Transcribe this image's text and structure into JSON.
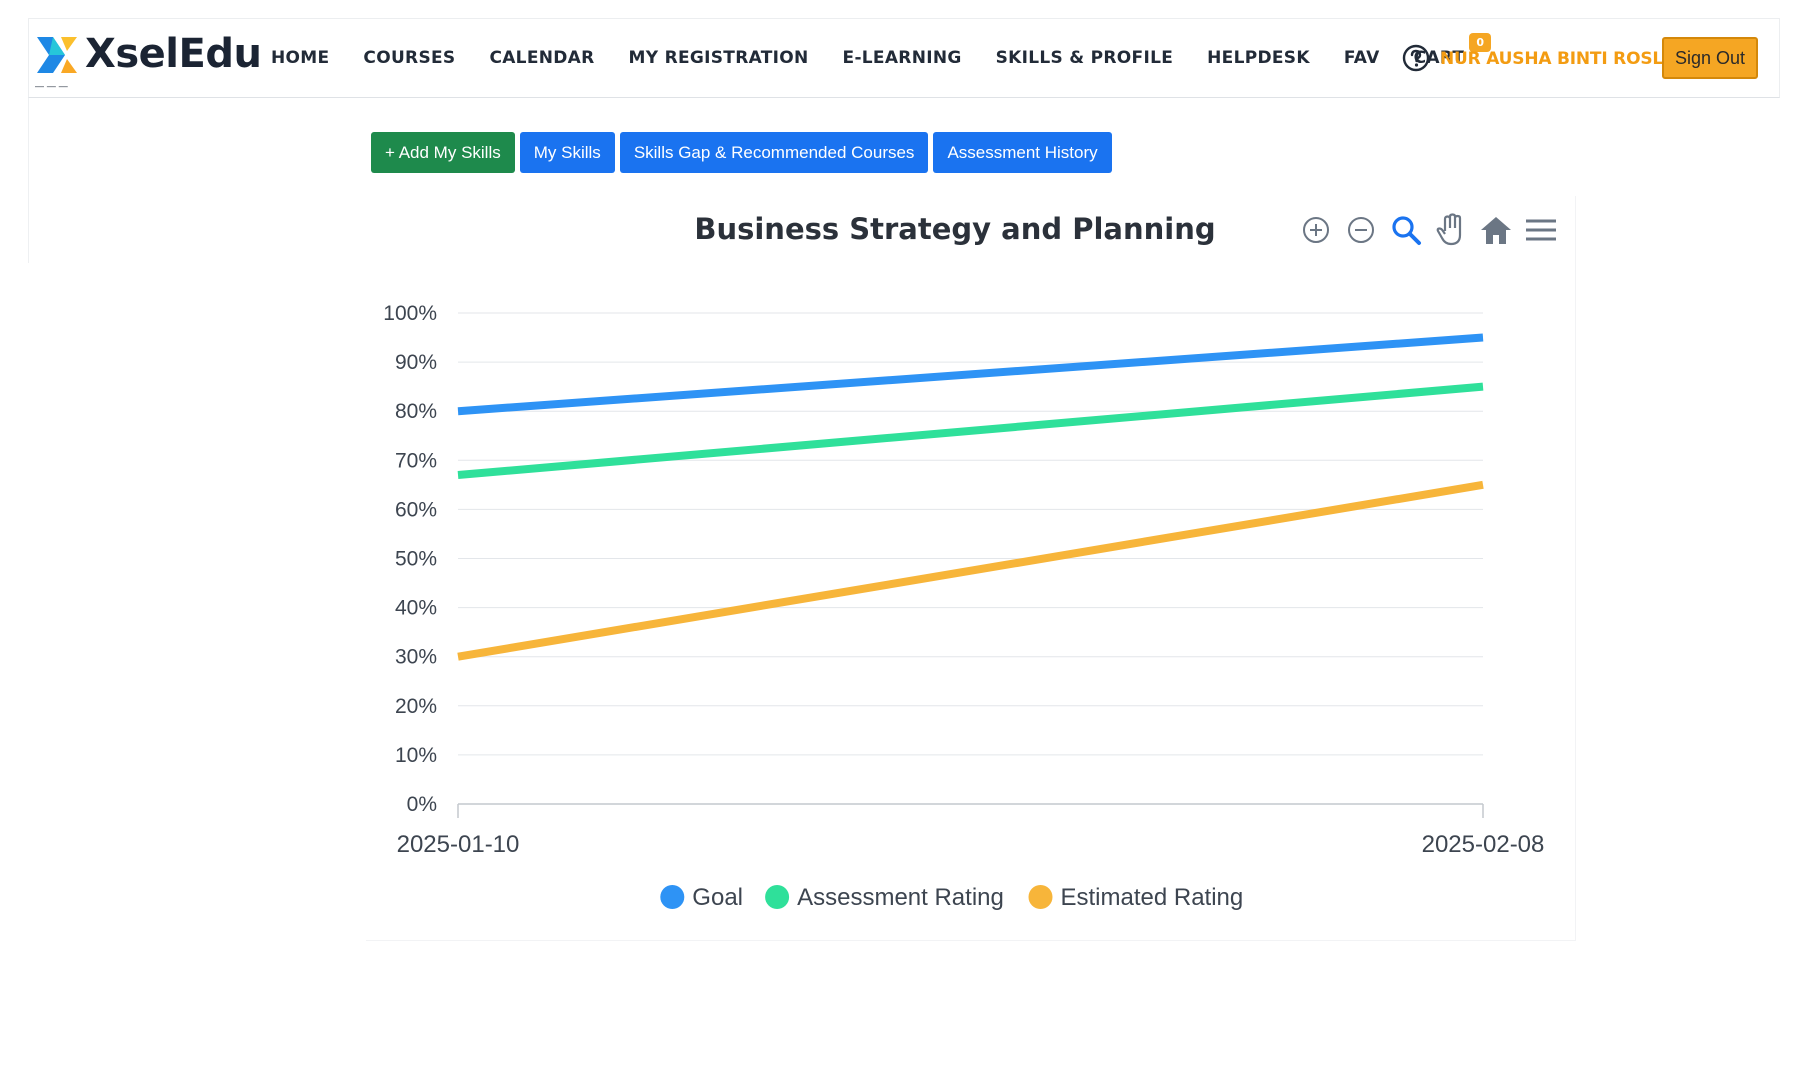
{
  "header": {
    "logo": {
      "name": "XselEdu",
      "tagline": "— — —"
    },
    "nav": [
      "HOME",
      "COURSES",
      "CALENDAR",
      "MY REGISTRATION",
      "E-LEARNING",
      "SKILLS & PROFILE",
      "HELPDESK",
      "FAV",
      "CART"
    ],
    "cart_count": "0",
    "help_icon": "question-circle-icon",
    "user_name": "NUR AUSHA BINTI ROSLI",
    "sign_out_label": "Sign Out"
  },
  "tabs": [
    {
      "label": "+ Add My Skills",
      "color": "#1e8a4c"
    },
    {
      "label": "My Skills",
      "color": "#1a73f0"
    },
    {
      "label": "Skills Gap & Recommended Courses",
      "color": "#1a73f0"
    },
    {
      "label": "Assessment History",
      "color": "#1a73f0"
    }
  ],
  "toolbar_icons": [
    "zoom-in-icon",
    "zoom-out-icon",
    "magnifier-icon",
    "pan-hand-icon",
    "home-reset-icon",
    "menu-icon"
  ],
  "chart_data": {
    "type": "line",
    "title": "Business Strategy and Planning",
    "x": [
      "2025-01-10",
      "2025-02-08"
    ],
    "ylim": [
      0,
      100
    ],
    "yticks": [
      "0%",
      "10%",
      "20%",
      "30%",
      "40%",
      "50%",
      "60%",
      "70%",
      "80%",
      "90%",
      "100%"
    ],
    "grid": true,
    "legend_position": "bottom",
    "series": [
      {
        "name": "Goal",
        "values": [
          80,
          95
        ],
        "color": "#2e93f5"
      },
      {
        "name": "Assessment Rating",
        "values": [
          67,
          85
        ],
        "color": "#2fe09a"
      },
      {
        "name": "Estimated Rating",
        "values": [
          30,
          65
        ],
        "color": "#f7b53a"
      }
    ]
  }
}
